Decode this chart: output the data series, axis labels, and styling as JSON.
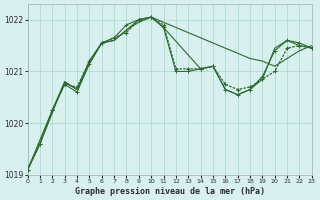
{
  "background_color": "#d8f0f0",
  "grid_color": "#aaddcc",
  "line_color": "#2d6a2d",
  "title": "Graphe pression niveau de la mer (hPa)",
  "xlim": [
    0,
    23
  ],
  "ylim": [
    1019,
    1022.3
  ],
  "yticks": [
    1019,
    1020,
    1021,
    1022
  ],
  "xticks": [
    0,
    1,
    2,
    3,
    4,
    5,
    6,
    7,
    8,
    9,
    10,
    11,
    12,
    13,
    14,
    15,
    16,
    17,
    18,
    19,
    20,
    21,
    22,
    23
  ],
  "series1_x": [
    0,
    1,
    2,
    3,
    4,
    5,
    6,
    7,
    8,
    9,
    10,
    11,
    12,
    13,
    14,
    15,
    16,
    17,
    18,
    19,
    20,
    21,
    22,
    23
  ],
  "series1_y": [
    1019.1,
    1019.6,
    1020.2,
    1020.8,
    1020.65,
    1021.15,
    1021.55,
    1021.6,
    1021.8,
    1022.0,
    1022.05,
    1021.95,
    1021.85,
    1021.75,
    1021.65,
    1021.55,
    1021.45,
    1021.35,
    1021.25,
    1021.2,
    1021.1,
    1021.25,
    1021.4,
    1021.5
  ],
  "series2_x": [
    0,
    1,
    2,
    3,
    4,
    5,
    6,
    7,
    8,
    9,
    10,
    11,
    12,
    13,
    14,
    15,
    16,
    17,
    18,
    19,
    20,
    21,
    22,
    23
  ],
  "series2_y": [
    1019.1,
    1019.6,
    1020.25,
    1020.75,
    1020.7,
    1021.2,
    1021.55,
    1021.65,
    1021.75,
    1022.0,
    1022.05,
    1021.9,
    1021.05,
    1021.05,
    1021.05,
    1021.1,
    1020.75,
    1020.65,
    1020.7,
    1020.85,
    1021.0,
    1021.45,
    1021.5,
    1021.45
  ],
  "series3_x": [
    0,
    1,
    2,
    3,
    4,
    5,
    6,
    7,
    8,
    9,
    10,
    11,
    12,
    13,
    14,
    15,
    16,
    17,
    18,
    19,
    20,
    21,
    22,
    23
  ],
  "series3_y": [
    1019.1,
    1019.6,
    1020.25,
    1020.75,
    1020.6,
    1021.15,
    1021.55,
    1021.65,
    1021.9,
    1022.0,
    1022.05,
    1021.85,
    1021.0,
    1021.0,
    1021.05,
    1021.1,
    1020.65,
    1020.55,
    1020.65,
    1020.9,
    1021.4,
    1021.6,
    1021.55,
    1021.45
  ],
  "series4_x": [
    0,
    2,
    3,
    4,
    5,
    6,
    7,
    8,
    9,
    10,
    11,
    14,
    15,
    16,
    17,
    18,
    19,
    20,
    21,
    22,
    23
  ],
  "series4_y": [
    1019.1,
    1020.25,
    1020.8,
    1020.65,
    1021.2,
    1021.55,
    1021.6,
    1021.8,
    1021.95,
    1022.05,
    1021.85,
    1021.05,
    1021.1,
    1020.65,
    1020.55,
    1020.65,
    1020.85,
    1021.45,
    1021.6,
    1021.5,
    1021.45
  ]
}
